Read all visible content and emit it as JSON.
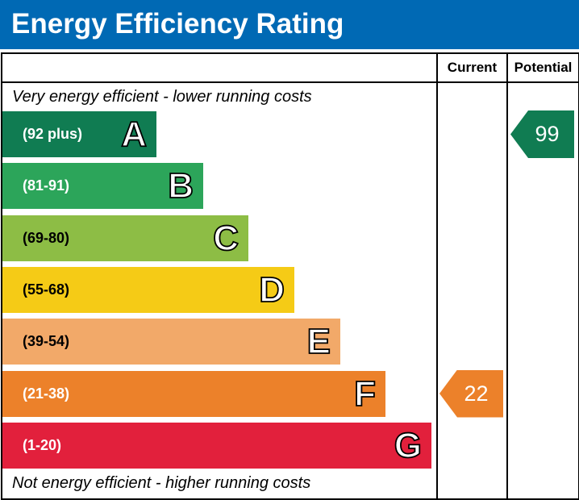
{
  "title": "Energy Efficiency Rating",
  "columns": {
    "current": "Current",
    "potential": "Potential"
  },
  "notes": {
    "top": "Very energy efficient - lower running costs",
    "bottom": "Not energy efficient - higher running costs"
  },
  "chart_data": {
    "type": "bar",
    "categories": [
      "A",
      "B",
      "C",
      "D",
      "E",
      "F",
      "G"
    ],
    "ranges": [
      "(92 plus)",
      "(81-91)",
      "(69-80)",
      "(55-68)",
      "(39-54)",
      "(21-38)",
      "(1-20)"
    ],
    "colors": [
      "#107c52",
      "#2ca55a",
      "#8dbd45",
      "#f5cb16",
      "#f2a969",
      "#ec812a",
      "#e2203c"
    ],
    "current": {
      "value": 22,
      "band": "F",
      "color": "#ec812a"
    },
    "potential": {
      "value": 99,
      "band": "A",
      "color": "#107c52"
    }
  }
}
